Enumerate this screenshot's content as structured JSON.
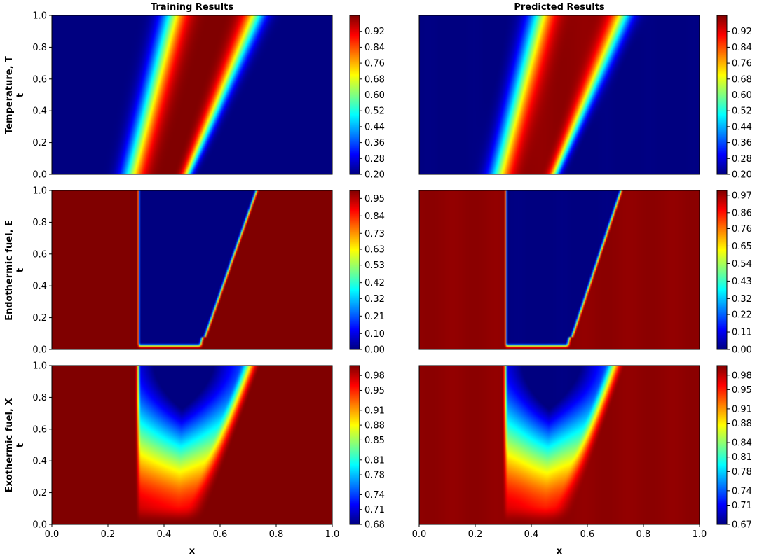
{
  "chart_data": {
    "type": "heatmap",
    "colormap": "jet",
    "column_titles": [
      "Training Results",
      "Predicted Results"
    ],
    "xlabel": "x",
    "ylabel": "t",
    "xlim": [
      0,
      1
    ],
    "ylim": [
      0,
      1
    ],
    "x_ticks": [
      "0.0",
      "0.2",
      "0.4",
      "0.6",
      "0.8",
      "1.0"
    ],
    "y_ticks": [
      "0.0",
      "0.2",
      "0.4",
      "0.6",
      "0.8",
      "1.0"
    ],
    "rows": [
      {
        "ylabel_var": "Temperature, T",
        "field": "temperature",
        "panels": [
          {
            "column": "Training Results",
            "colorbar_range": [
              0.2,
              1.0
            ],
            "colorbar_ticks": [
              "0.20",
              "0.28",
              "0.36",
              "0.44",
              "0.52",
              "0.60",
              "0.68",
              "0.76",
              "0.84",
              "0.92"
            ],
            "profile": {
              "front_left": [
                0.29,
                0.44
              ],
              "front_right": [
                0.48,
                0.72
              ],
              "peak_center": [
                0.42,
                0.59
              ]
            }
          },
          {
            "column": "Predicted Results",
            "colorbar_range": [
              0.2,
              1.0
            ],
            "colorbar_ticks": [
              "0.20",
              "0.28",
              "0.36",
              "0.44",
              "0.52",
              "0.60",
              "0.68",
              "0.76",
              "0.84",
              "0.92"
            ],
            "profile": {
              "front_left": [
                0.29,
                0.44
              ],
              "front_right": [
                0.48,
                0.72
              ],
              "peak_center": [
                0.42,
                0.59
              ]
            }
          }
        ]
      },
      {
        "ylabel_var": "Endothermic fuel, E",
        "field": "endothermic",
        "panels": [
          {
            "column": "Training Results",
            "colorbar_range": [
              0.0,
              1.0
            ],
            "colorbar_ticks": [
              "0.00",
              "0.10",
              "0.21",
              "0.32",
              "0.42",
              "0.53",
              "0.63",
              "0.73",
              "0.84",
              "0.95"
            ],
            "profile": {
              "left_front": 0.31,
              "bottom_left": [
                0.31,
                0.03
              ],
              "bottom_right": [
                0.53,
                0.03
              ],
              "top_right": [
                0.73,
                1.0
              ]
            }
          },
          {
            "column": "Predicted Results",
            "colorbar_range": [
              0.0,
              1.0
            ],
            "colorbar_ticks": [
              "0.00",
              "0.11",
              "0.22",
              "0.32",
              "0.43",
              "0.54",
              "0.65",
              "0.76",
              "0.86",
              "0.97"
            ],
            "profile": {
              "left_front": 0.31,
              "bottom_left": [
                0.31,
                0.03
              ],
              "bottom_right": [
                0.53,
                0.03
              ],
              "top_right": [
                0.72,
                1.0
              ]
            }
          }
        ]
      },
      {
        "ylabel_var": "Exothermic fuel, X",
        "field": "exothermic",
        "panels": [
          {
            "column": "Training Results",
            "colorbar_range": [
              0.68,
              1.0
            ],
            "colorbar_ticks": [
              "0.68",
              "0.71",
              "0.74",
              "0.78",
              "0.81",
              "0.85",
              "0.88",
              "0.91",
              "0.95",
              "0.98"
            ],
            "profile": {
              "left_front": 0.31,
              "bottom_right": 0.52,
              "top_right": 0.73,
              "min_value": 0.68
            }
          },
          {
            "column": "Predicted Results",
            "colorbar_range": [
              0.67,
              1.0
            ],
            "colorbar_ticks": [
              "0.67",
              "0.71",
              "0.74",
              "0.78",
              "0.81",
              "0.84",
              "0.88",
              "0.91",
              "0.95",
              "0.98"
            ],
            "profile": {
              "left_front": 0.31,
              "bottom_right": 0.52,
              "top_right": 0.72,
              "min_value": 0.67
            }
          }
        ]
      }
    ]
  }
}
